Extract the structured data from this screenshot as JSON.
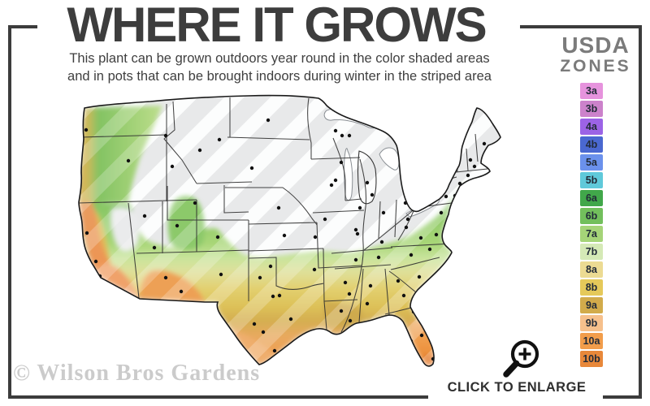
{
  "title": "WHERE IT GROWS",
  "subtitle": {
    "line1": "This plant can be grown outdoors year round in the color shaded areas",
    "line2": "and in pots that can be brought indoors during winter in the striped area"
  },
  "legend": {
    "heading_line1": "USDA",
    "heading_line2": "ZONES",
    "zones": [
      {
        "label": "3a",
        "color": "#e693dd"
      },
      {
        "label": "3b",
        "color": "#cc82cb"
      },
      {
        "label": "4a",
        "color": "#9c63e6"
      },
      {
        "label": "4b",
        "color": "#4a68d0"
      },
      {
        "label": "5a",
        "color": "#6b91ec"
      },
      {
        "label": "5b",
        "color": "#5fc9da"
      },
      {
        "label": "6a",
        "color": "#41a74a"
      },
      {
        "label": "6b",
        "color": "#72bf5c"
      },
      {
        "label": "7a",
        "color": "#a5d478"
      },
      {
        "label": "7b",
        "color": "#d5e9b6"
      },
      {
        "label": "8a",
        "color": "#ecdb93"
      },
      {
        "label": "8b",
        "color": "#e5c95a"
      },
      {
        "label": "9a",
        "color": "#d2ab4b"
      },
      {
        "label": "9b",
        "color": "#f6c08c"
      },
      {
        "label": "10a",
        "color": "#f29d4b"
      },
      {
        "label": "10b",
        "color": "#e8883a"
      }
    ]
  },
  "watermark": "© Wilson Bros Gardens",
  "enlarge": {
    "label": "CLICK TO ENLARGE",
    "icon": "magnifier-plus-icon"
  },
  "map": {
    "description_icon": "usda-zone-map"
  }
}
